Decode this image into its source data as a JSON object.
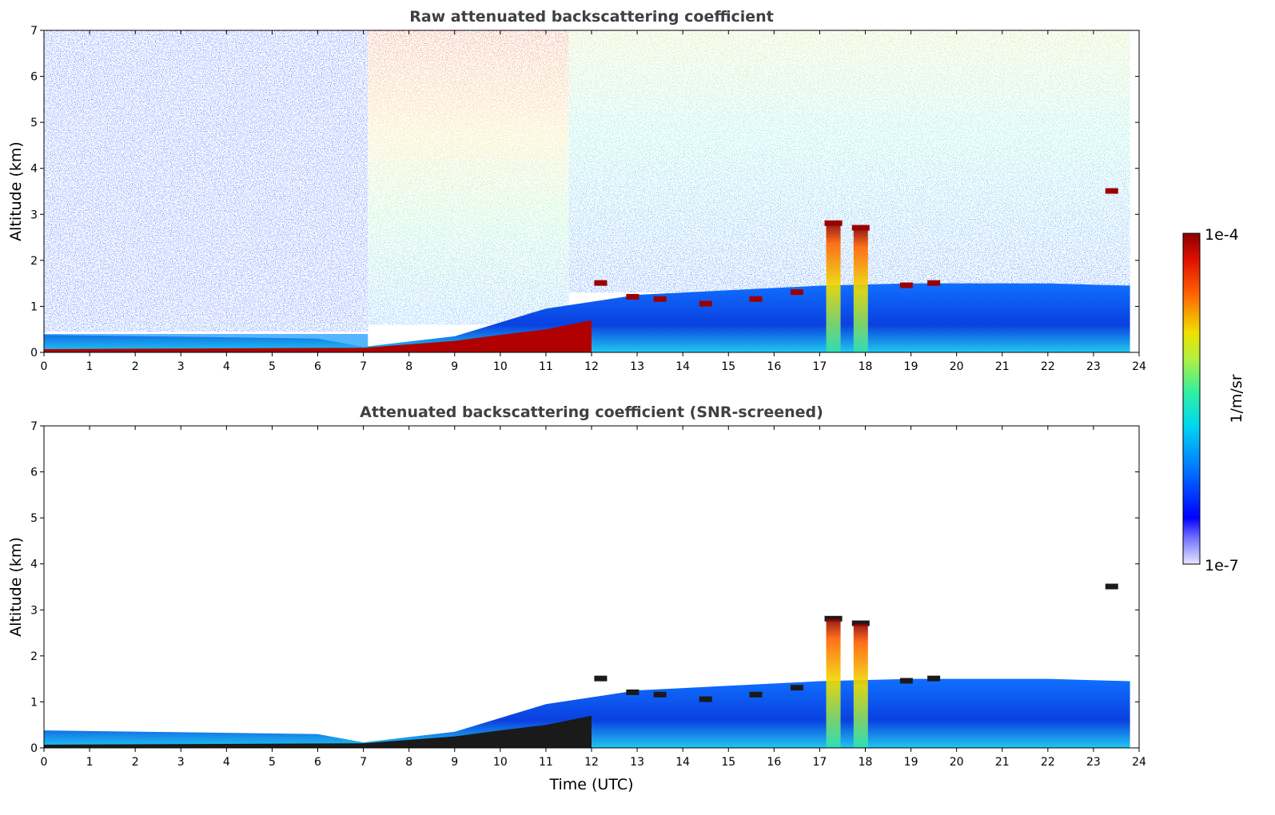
{
  "chart_data": [
    {
      "type": "heatmap",
      "title": "Raw attenuated backscattering coefficient",
      "xlabel": "",
      "ylabel": "Altitude (km)",
      "xlim": [
        0,
        24
      ],
      "ylim": [
        0,
        7
      ],
      "xticks": [
        "0",
        "1",
        "2",
        "3",
        "4",
        "5",
        "6",
        "7",
        "8",
        "9",
        "10",
        "11",
        "12",
        "13",
        "14",
        "15",
        "16",
        "17",
        "18",
        "19",
        "20",
        "21",
        "22",
        "23",
        "24"
      ],
      "yticks": [
        "0",
        "1",
        "2",
        "3",
        "4",
        "5",
        "6",
        "7"
      ],
      "data_end_time": 23.8,
      "features": {
        "surface_layer": [
          {
            "t": 0,
            "top_km": 0.07
          },
          {
            "t": 7,
            "top_km": 0.1
          },
          {
            "t": 9,
            "top_km": 0.25
          },
          {
            "t": 10,
            "top_km": 0.38
          },
          {
            "t": 11,
            "top_km": 0.5
          },
          {
            "t": 12,
            "top_km": 0.7
          }
        ],
        "cloud_base_km": [
          {
            "t": 12.2,
            "alt": 1.5
          },
          {
            "t": 12.9,
            "alt": 1.2
          },
          {
            "t": 13.5,
            "alt": 1.15
          },
          {
            "t": 14.5,
            "alt": 1.05
          },
          {
            "t": 15.6,
            "alt": 1.15
          },
          {
            "t": 16.5,
            "alt": 1.3
          },
          {
            "t": 17.3,
            "alt": 2.8
          },
          {
            "t": 17.9,
            "alt": 2.7
          },
          {
            "t": 18.9,
            "alt": 1.45
          },
          {
            "t": 19.5,
            "alt": 1.5
          },
          {
            "t": 23.4,
            "alt": 3.5
          }
        ]
      }
    },
    {
      "type": "heatmap",
      "title": "Attenuated backscattering coefficient (SNR-screened)",
      "xlabel": "Time (UTC)",
      "ylabel": "Altitude (km)",
      "xlim": [
        0,
        24
      ],
      "ylim": [
        0,
        7
      ],
      "xticks": [
        "0",
        "1",
        "2",
        "3",
        "4",
        "5",
        "6",
        "7",
        "8",
        "9",
        "10",
        "11",
        "12",
        "13",
        "14",
        "15",
        "16",
        "17",
        "18",
        "19",
        "20",
        "21",
        "22",
        "23",
        "24"
      ],
      "yticks": [
        "0",
        "1",
        "2",
        "3",
        "4",
        "5",
        "6",
        "7"
      ],
      "data_end_time": 23.8,
      "boundary_layer_top_km": [
        {
          "t": 0,
          "alt": 0.38
        },
        {
          "t": 6,
          "alt": 0.3
        },
        {
          "t": 7,
          "alt": 0.12
        },
        {
          "t": 9,
          "alt": 0.35
        },
        {
          "t": 11,
          "alt": 0.95
        },
        {
          "t": 13,
          "alt": 1.25
        },
        {
          "t": 15,
          "alt": 1.35
        },
        {
          "t": 17,
          "alt": 1.45
        },
        {
          "t": 19,
          "alt": 1.5
        },
        {
          "t": 22,
          "alt": 1.5
        },
        {
          "t": 23.8,
          "alt": 1.45
        }
      ]
    }
  ],
  "colorbar": {
    "label": "1/m/sr",
    "max_label": "1e-4",
    "min_label": "1e-7",
    "scale": "log",
    "colors": [
      "#e6e6ff",
      "#0000ff",
      "#00b0ff",
      "#00e8c8",
      "#66ee66",
      "#f0e000",
      "#ff8000",
      "#e02000",
      "#8b0000"
    ]
  }
}
